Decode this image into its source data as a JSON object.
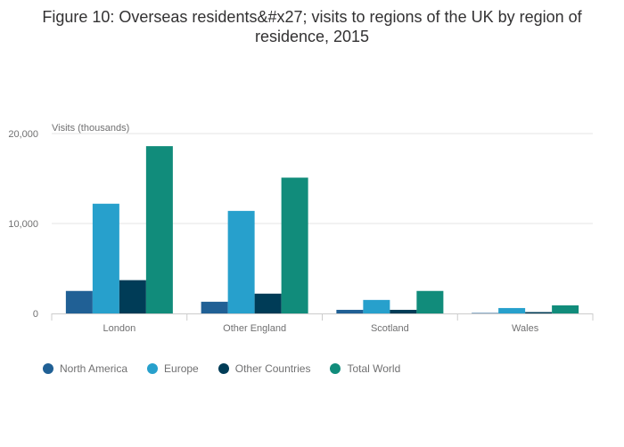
{
  "chart_data": {
    "type": "bar",
    "title": "Figure 10: Overseas residents&#x27; visits to regions of the UK by region of residence, 2015",
    "ylabel": "Visits (thousands)",
    "xlabel": "",
    "ylim": [
      0,
      20000
    ],
    "yticks": [
      0,
      10000,
      20000
    ],
    "ytick_labels": [
      "0",
      "10,000",
      "20,000"
    ],
    "categories": [
      "London",
      "Other England",
      "Scotland",
      "Wales"
    ],
    "series": [
      {
        "name": "North America",
        "color": "#206095",
        "values": [
          2500,
          1300,
          400,
          50
        ]
      },
      {
        "name": "Europe",
        "color": "#27a0cc",
        "values": [
          12200,
          11400,
          1500,
          600
        ]
      },
      {
        "name": "Other Countries",
        "color": "#003c57",
        "values": [
          3700,
          2200,
          400,
          150
        ]
      },
      {
        "name": "Total World",
        "color": "#118c7b",
        "values": [
          18600,
          15100,
          2500,
          900
        ]
      }
    ],
    "grid": true,
    "legend_position": "bottom"
  }
}
